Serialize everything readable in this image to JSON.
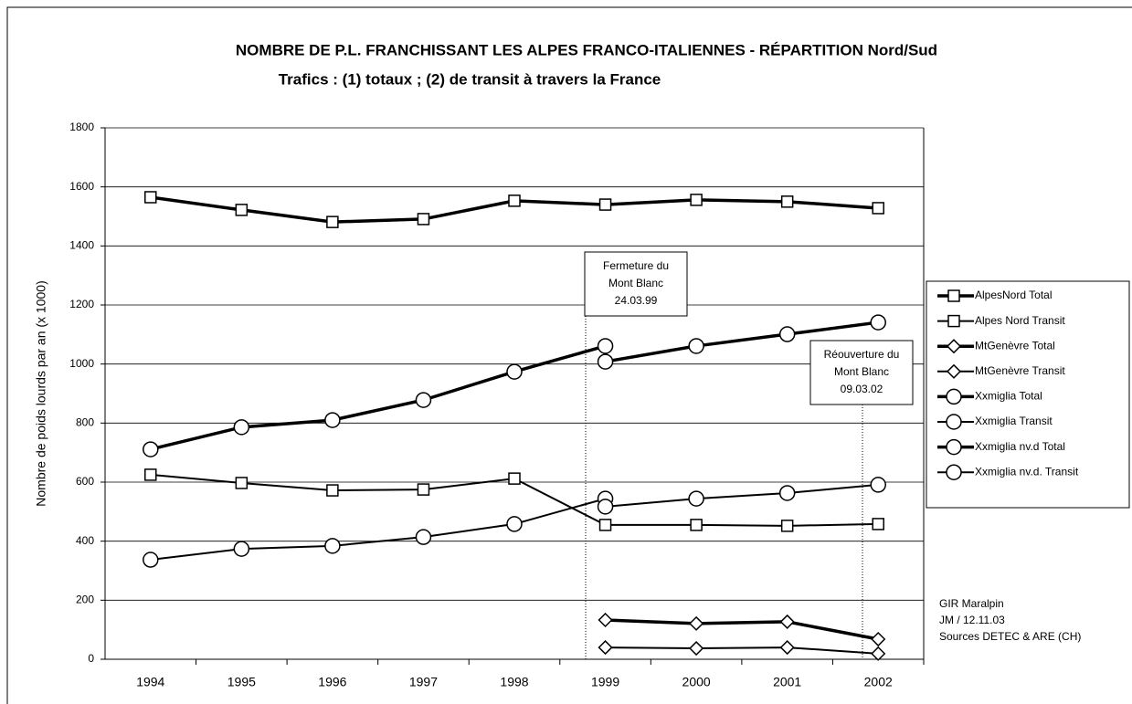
{
  "chart_data": {
    "type": "line",
    "title": "NOMBRE DE P.L. FRANCHISSANT LES ALPES FRANCO-ITALIENNES - RÉPARTITION Nord/Sud",
    "subtitle": "Trafics : (1) totaux ; (2) de transit à travers la France",
    "y_label": "Nombre de poids lourds par an (x 1000)",
    "categories": [
      "1994",
      "1995",
      "1996",
      "1997",
      "1998",
      "1999",
      "2000",
      "2001",
      "2002"
    ],
    "ylim": [
      0,
      1800
    ],
    "yticks": [
      0,
      200,
      400,
      600,
      800,
      1000,
      1200,
      1400,
      1600,
      1800
    ],
    "grid": true,
    "series": [
      {
        "name": "AlpesNord Total",
        "color": "#000000",
        "marker": "square",
        "line_width": 3.5,
        "values": [
          1565,
          1522,
          1481,
          1491,
          1553,
          1540,
          1556,
          1550,
          1528
        ]
      },
      {
        "name": "Alpes Nord Transit",
        "color": "#000000",
        "marker": "square",
        "line_width": 2,
        "values": [
          625,
          597,
          572,
          575,
          612,
          455,
          455,
          452,
          458
        ]
      },
      {
        "name": "MtGenèvre Total",
        "color": "#000000",
        "marker": "diamond",
        "line_width": 3.5,
        "values": [
          null,
          null,
          null,
          null,
          null,
          133,
          121,
          127,
          68
        ]
      },
      {
        "name": "MtGenèvre Transit",
        "color": "#000000",
        "marker": "diamond",
        "line_width": 2,
        "values": [
          null,
          null,
          null,
          null,
          null,
          40,
          37,
          40,
          19
        ]
      },
      {
        "name": "Xxmiglia Total",
        "color": "#000000",
        "marker": "circle",
        "line_width": 3.5,
        "values": [
          711,
          786,
          810,
          878,
          974,
          1061,
          null,
          null,
          null
        ]
      },
      {
        "name": "Xxmiglia Transit",
        "color": "#000000",
        "marker": "circle",
        "line_width": 2,
        "values": [
          337,
          374,
          384,
          414,
          458,
          544,
          null,
          null,
          null
        ]
      },
      {
        "name": "Xxmiglia nv.d Total",
        "color": "#000000",
        "marker": "circle",
        "line_width": 3.5,
        "values": [
          null,
          null,
          null,
          null,
          null,
          1008,
          1061,
          1101,
          1141
        ]
      },
      {
        "name": "Xxmiglia nv.d. Transit",
        "color": "#000000",
        "marker": "circle",
        "line_width": 2,
        "values": [
          null,
          null,
          null,
          null,
          null,
          517,
          544,
          563,
          591
        ]
      }
    ],
    "annotations": [
      {
        "lines": [
          "Fermeture du",
          "Mont Blanc",
          "24.03.99"
        ]
      },
      {
        "lines": [
          "Réouverture du",
          "Mont Blanc",
          "09.03.02"
        ]
      }
    ],
    "source": [
      "GIR Maralpin",
      "JM / 12.11.03",
      "Sources DETEC & ARE (CH)"
    ]
  }
}
